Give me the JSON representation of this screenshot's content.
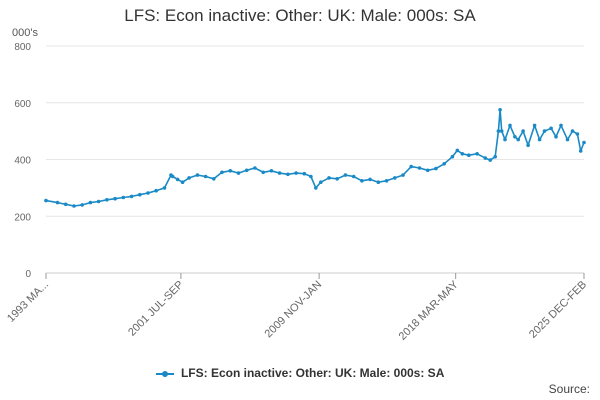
{
  "chart_data": {
    "type": "line",
    "title": "LFS: Econ inactive: Other: UK: Male: 000s: SA",
    "ylabel": "000's",
    "ylim": [
      0,
      800
    ],
    "yticks": [
      0,
      200,
      400,
      600,
      800
    ],
    "xtick_labels": [
      "1993 MA...",
      "2001 JUL-SEP",
      "2009 NOV-JAN",
      "2018 MAR-MAY",
      "2025 DEC-FEB"
    ],
    "xtick_years": [
      1993.3,
      2001.5,
      2009.9,
      2018.2,
      2026.0
    ],
    "x_range": [
      1993.3,
      2026.0
    ],
    "grid": "horizontal",
    "legend_position": "bottom",
    "series": [
      {
        "name": "LFS: Econ inactive: Other: UK: Male: 000s: SA",
        "color": "#1a8ac7",
        "x": [
          1993.3,
          1994.0,
          1994.5,
          1995.0,
          1995.5,
          1996.0,
          1996.5,
          1997.0,
          1997.5,
          1998.0,
          1998.5,
          1999.0,
          1999.5,
          2000.0,
          2000.5,
          2000.9,
          2001.0,
          2001.3,
          2001.6,
          2002.0,
          2002.5,
          2003.0,
          2003.5,
          2004.0,
          2004.5,
          2005.0,
          2005.5,
          2006.0,
          2006.5,
          2007.0,
          2007.5,
          2008.0,
          2008.5,
          2009.0,
          2009.4,
          2009.7,
          2010.0,
          2010.5,
          2011.0,
          2011.5,
          2012.0,
          2012.5,
          2013.0,
          2013.5,
          2014.0,
          2014.5,
          2015.0,
          2015.5,
          2016.0,
          2016.5,
          2017.0,
          2017.5,
          2018.0,
          2018.3,
          2018.6,
          2019.0,
          2019.5,
          2020.0,
          2020.3,
          2020.6,
          2020.8,
          2020.9,
          2021.0,
          2021.2,
          2021.5,
          2021.8,
          2022.0,
          2022.3,
          2022.6,
          2023.0,
          2023.3,
          2023.6,
          2024.0,
          2024.3,
          2024.6,
          2025.0,
          2025.3,
          2025.6,
          2025.8,
          2026.0
        ],
        "values": [
          255,
          248,
          242,
          236,
          240,
          248,
          252,
          258,
          262,
          266,
          270,
          276,
          282,
          290,
          300,
          345,
          340,
          330,
          320,
          335,
          345,
          340,
          332,
          355,
          360,
          352,
          362,
          370,
          355,
          360,
          352,
          348,
          352,
          350,
          340,
          300,
          320,
          335,
          332,
          345,
          340,
          325,
          330,
          320,
          325,
          335,
          345,
          375,
          370,
          362,
          368,
          385,
          410,
          432,
          420,
          415,
          420,
          405,
          398,
          410,
          500,
          575,
          500,
          470,
          520,
          480,
          470,
          500,
          450,
          520,
          470,
          500,
          510,
          480,
          520,
          470,
          500,
          490,
          430,
          460
        ]
      }
    ],
    "source": "Source:"
  }
}
